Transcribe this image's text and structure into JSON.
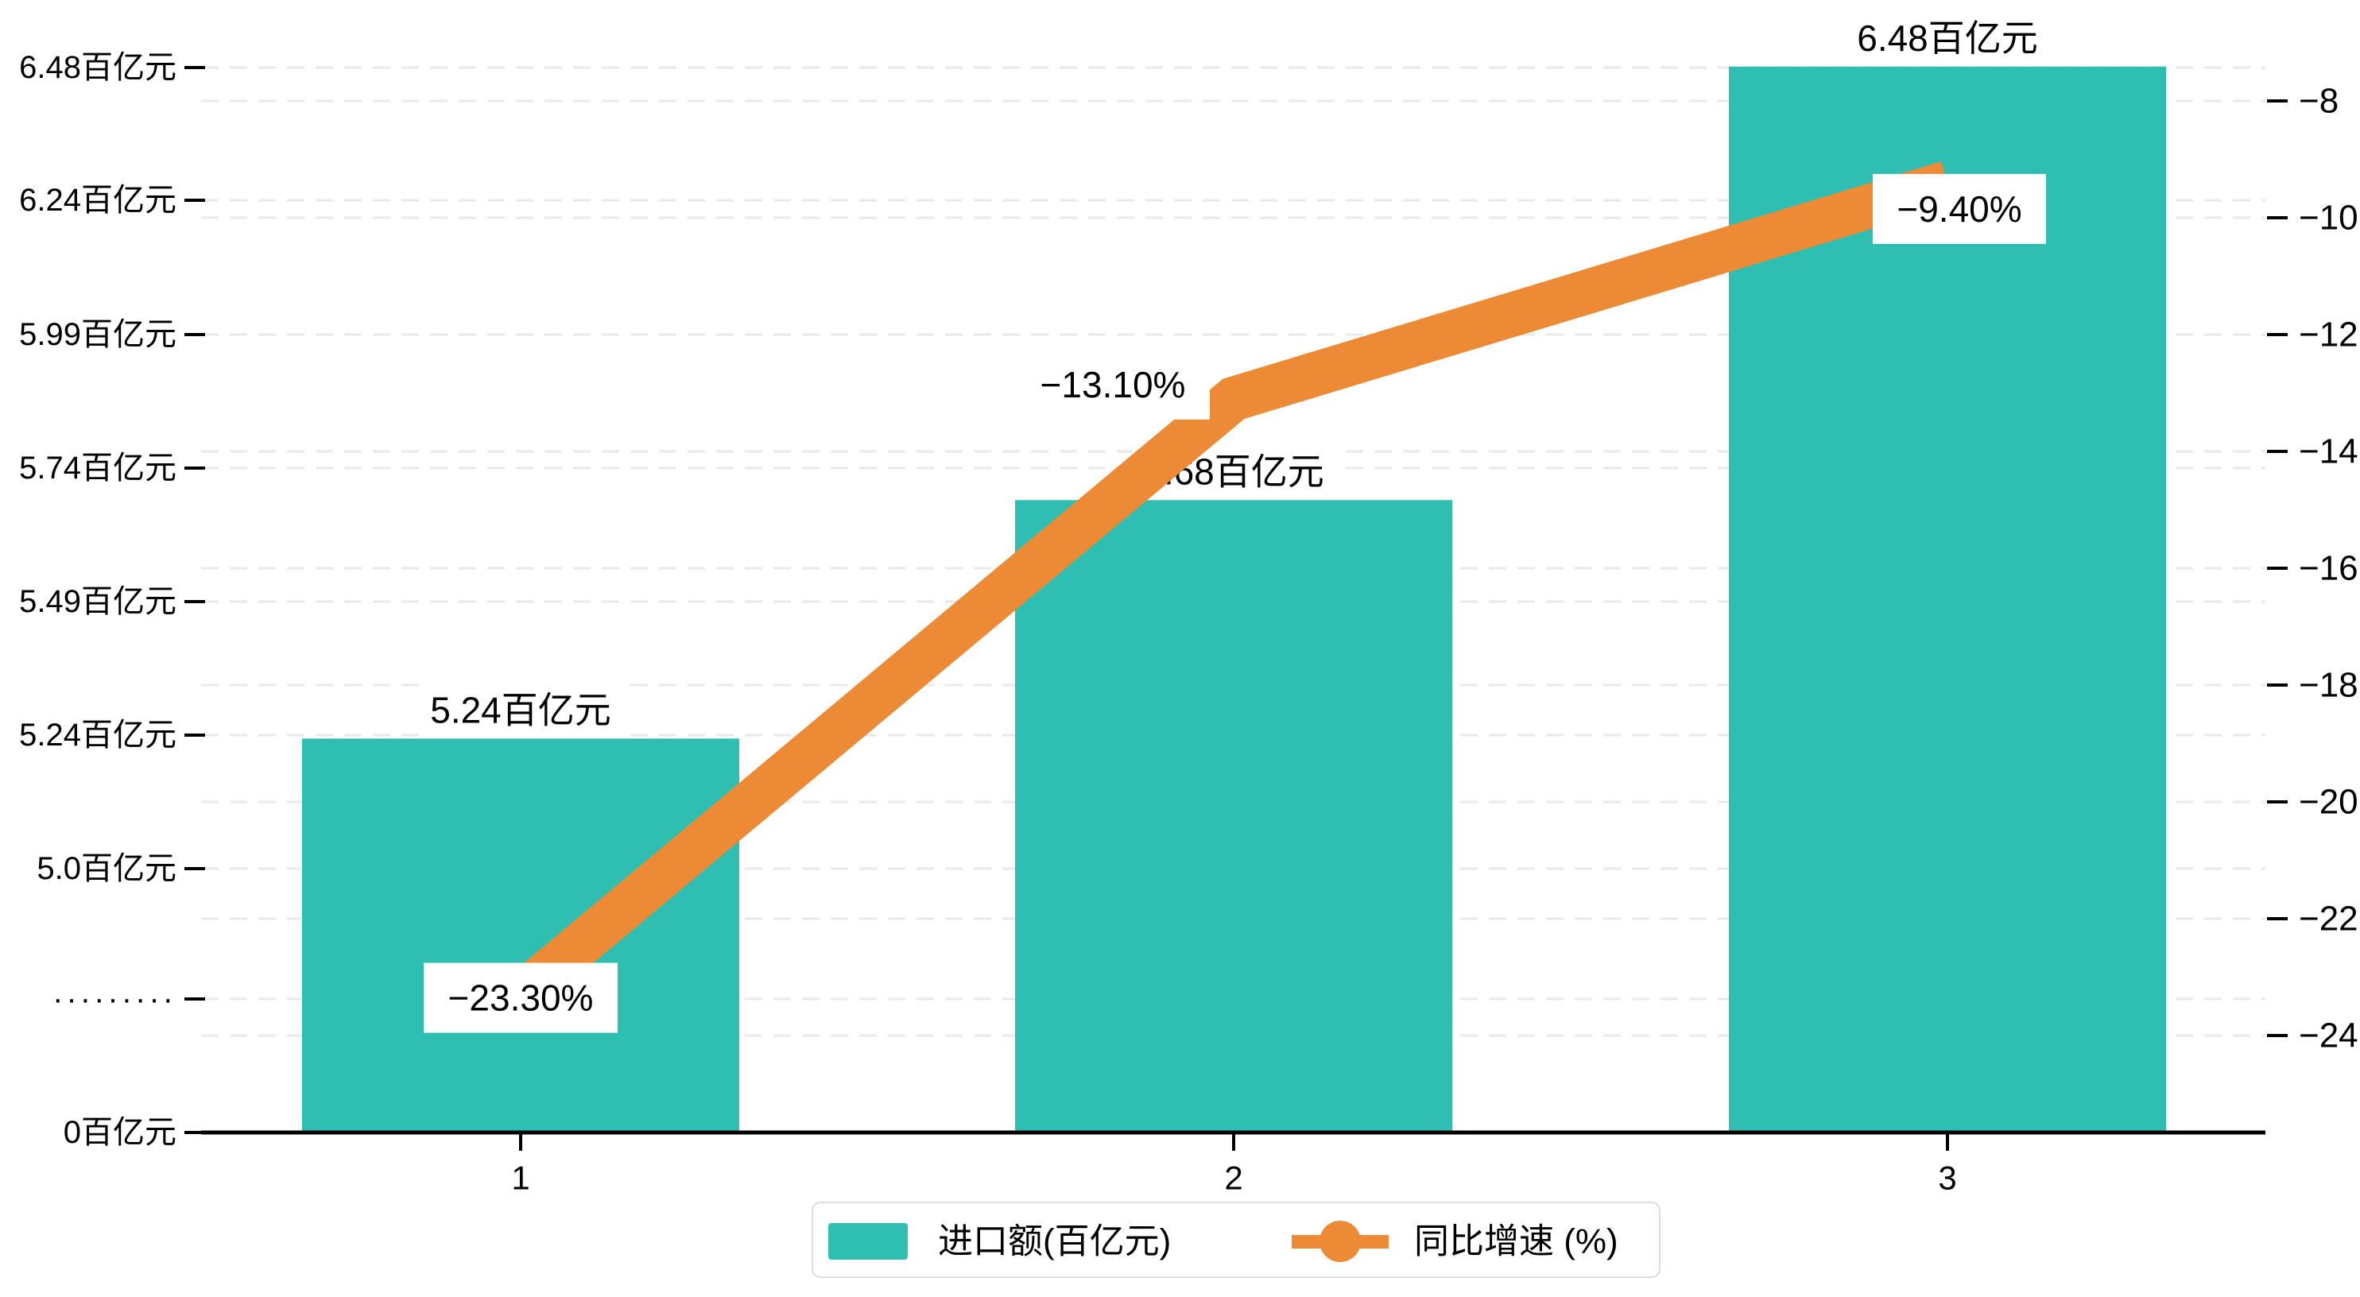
{
  "chart_data": {
    "type": "combo",
    "categories": [
      "1",
      "2",
      "3"
    ],
    "series": [
      {
        "name": "进口额(百亿元)",
        "type": "bar",
        "unit": "百亿元",
        "values": [
          5.24,
          5.68,
          6.48
        ],
        "data_labels": [
          "5.24百亿元",
          "5.68百亿元",
          "6.48百亿元"
        ],
        "color": "#2FBFB2"
      },
      {
        "name": "同比增速 (%)",
        "type": "line",
        "unit": "%",
        "values": [
          -23.3,
          -13.1,
          -9.4
        ],
        "data_labels": [
          "−23.30%",
          "−13.10%",
          "−9.40%"
        ],
        "color": "#EC8A35"
      }
    ],
    "left_axis": {
      "tick_labels": [
        "6.48百亿元",
        "6.24百亿元",
        "5.99百亿元",
        "5.74百亿元",
        "5.49百亿元",
        "5.24百亿元",
        "5.0百亿元",
        "·········",
        "0百亿元"
      ],
      "has_break": true,
      "range_top_value": 6.48,
      "range_bottom_value": 0
    },
    "right_axis": {
      "tick_labels": [
        "−8",
        "−10",
        "−12",
        "−14",
        "−16",
        "−18",
        "−20",
        "−22",
        "−24"
      ],
      "top_value": -8,
      "step": -2
    },
    "x_axis": {
      "tick_labels": [
        "1",
        "2",
        "3"
      ]
    },
    "legend": {
      "items": [
        {
          "label": "进口额(百亿元)",
          "marker": "square",
          "color": "#2FBFB2"
        },
        {
          "label": "同比增速 (%)",
          "marker": "line-dot",
          "color": "#EC8A35"
        }
      ],
      "position": "bottom-center"
    },
    "grid": true,
    "title": "",
    "colors": {
      "bar": "#2FBFB2",
      "line": "#EC8A35",
      "gridline": "#E9E9E9",
      "axis": "#000000",
      "label_box_bg": "#FFFFFF",
      "legend_border": "#DDDDDD",
      "text": "#000000"
    }
  }
}
